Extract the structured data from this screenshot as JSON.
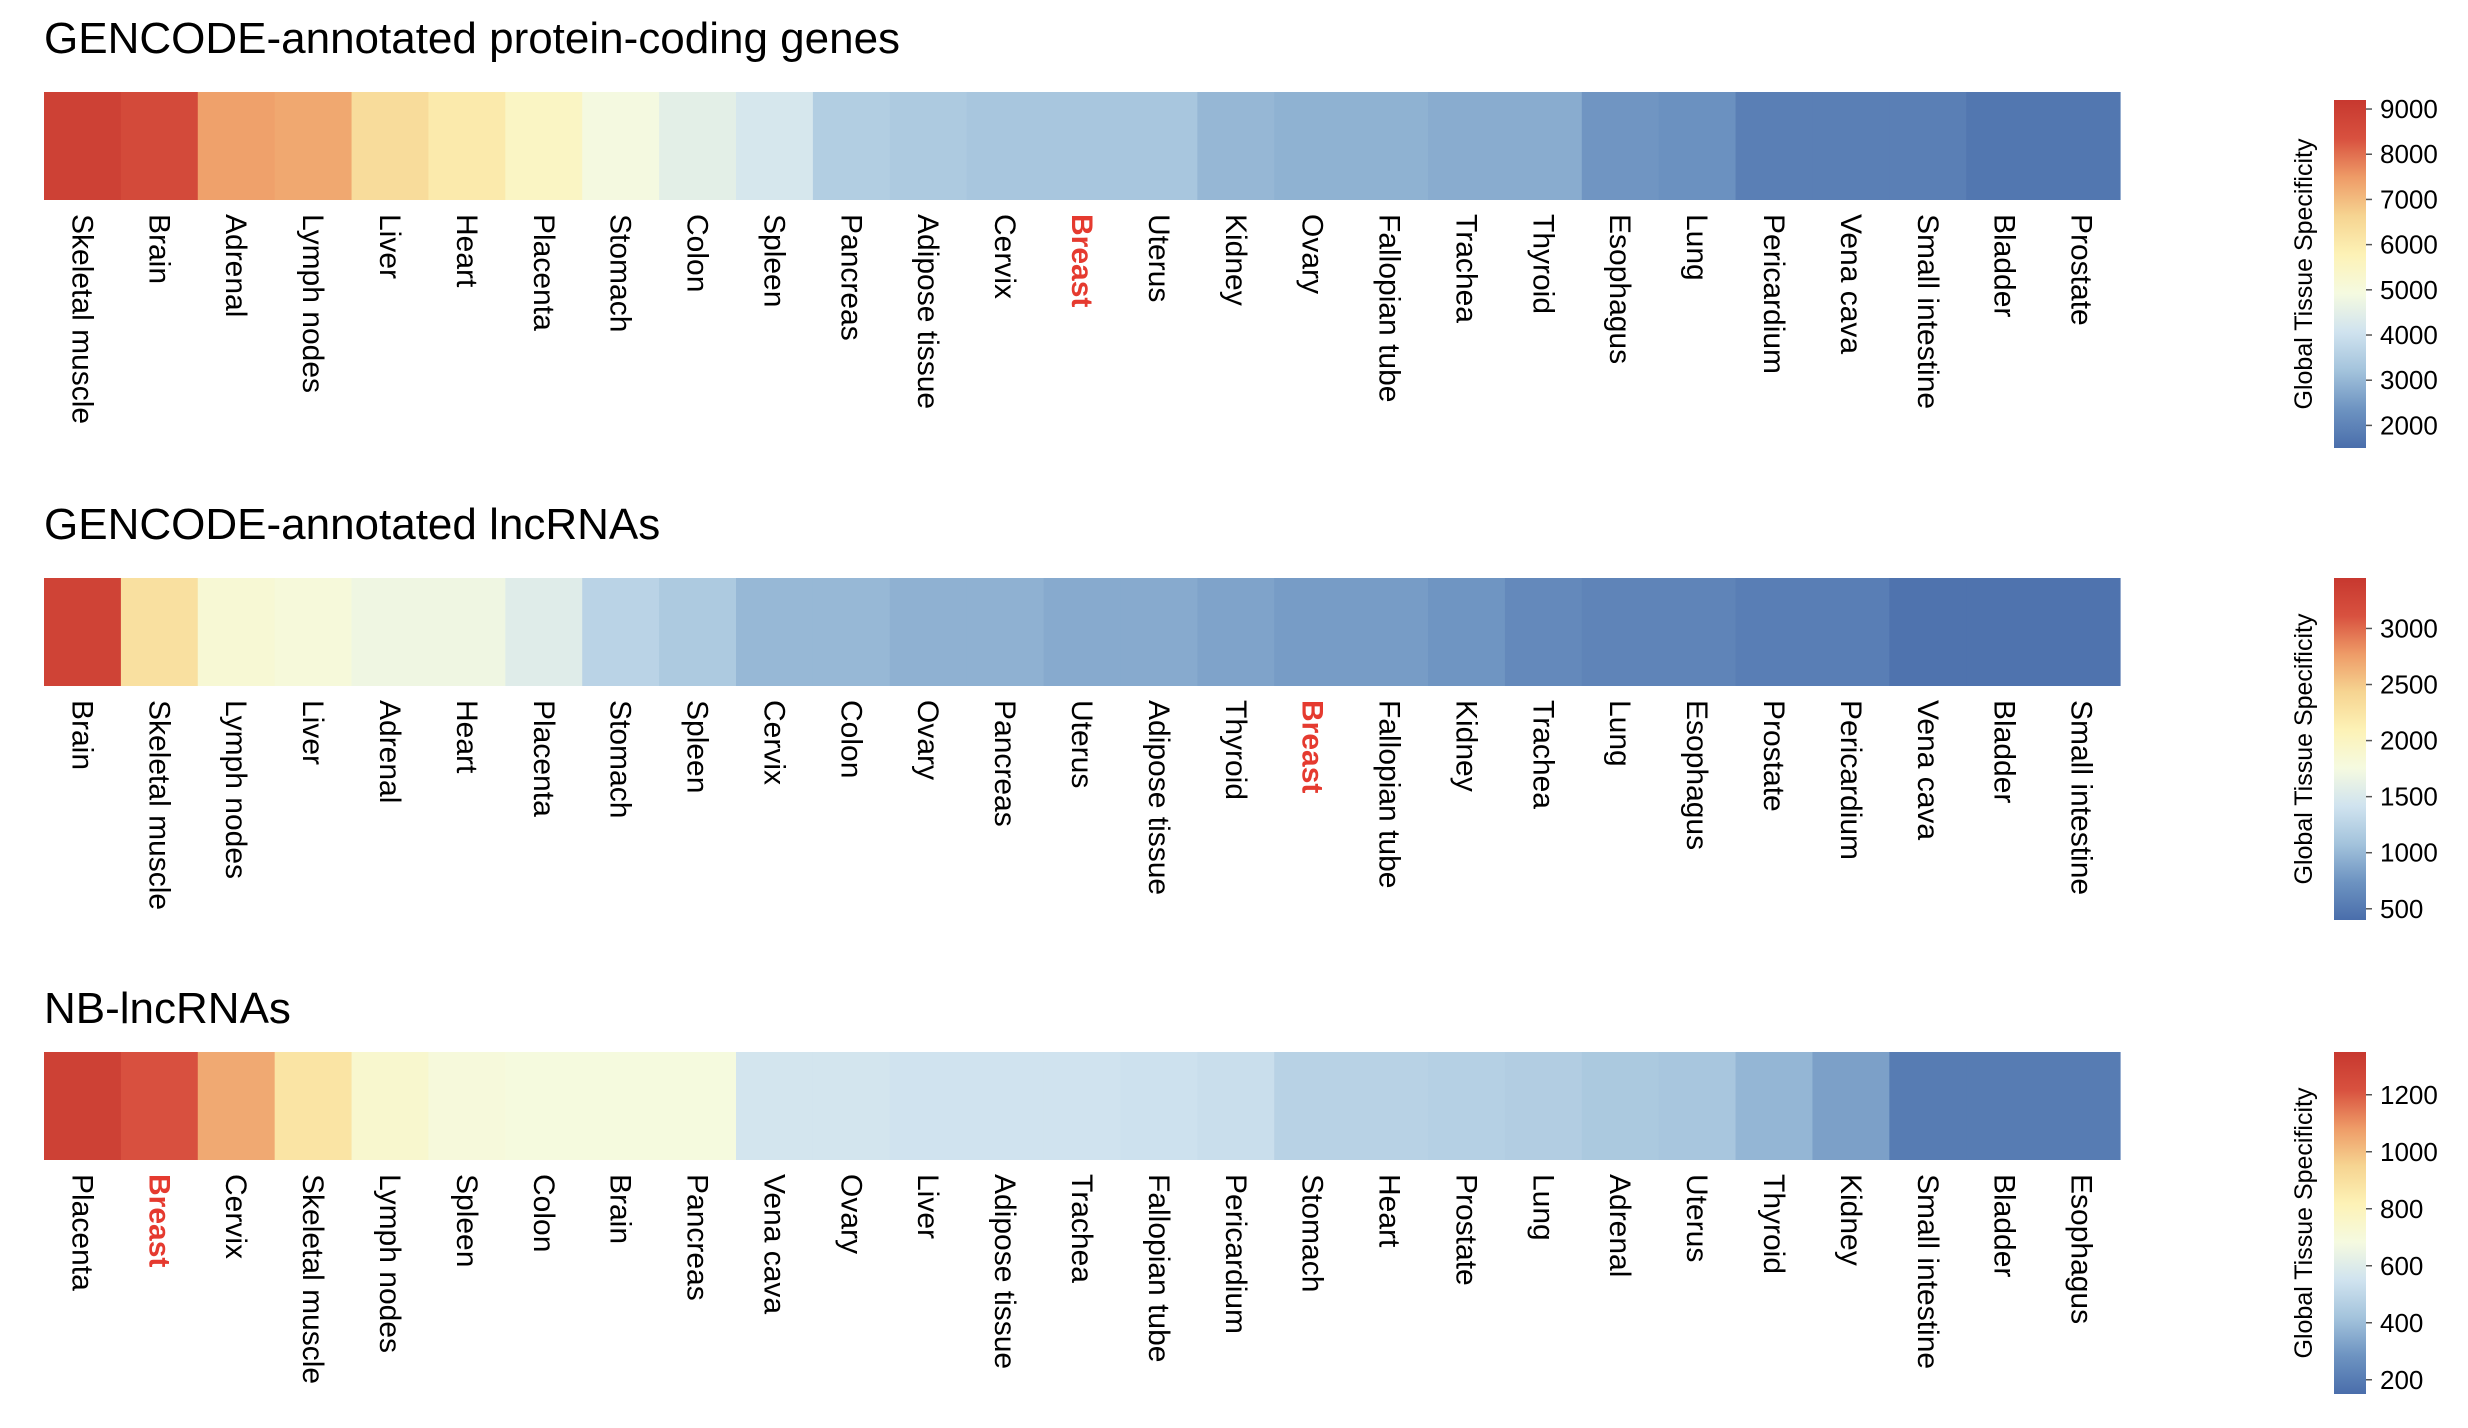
{
  "chart_data": [
    {
      "type": "heatmap",
      "title": "GENCODE-annotated protein-coding genes",
      "categories": [
        "Skeletal muscle",
        "Brain",
        "Adrenal",
        "Lymph nodes",
        "Liver",
        "Heart",
        "Placenta",
        "Stomach",
        "Colon",
        "Spleen",
        "Pancreas",
        "Adipose tissue",
        "Cervix",
        "Breast",
        "Uterus",
        "Kidney",
        "Ovary",
        "Fallopian tube",
        "Trachea",
        "Thyroid",
        "Esophagus",
        "Lung",
        "Pericardium",
        "Vena cava",
        "Small intestine",
        "Bladder",
        "Prostate"
      ],
      "values": [
        8900,
        8600,
        7400,
        7300,
        6400,
        6000,
        5500,
        4900,
        4500,
        4200,
        3500,
        3400,
        3300,
        3300,
        3300,
        3000,
        2900,
        2900,
        2800,
        2800,
        2400,
        2300,
        1900,
        1900,
        1900,
        1700,
        1700
      ],
      "highlight": "Breast",
      "highlight_color": "#e53a2f",
      "colorbar": {
        "label": "Global Tissue Specificity",
        "min": 1500,
        "max": 9200,
        "ticks": [
          2000,
          3000,
          4000,
          5000,
          6000,
          7000,
          8000,
          9000
        ]
      }
    },
    {
      "type": "heatmap",
      "title": "GENCODE-annotated lncRNAs",
      "categories": [
        "Brain",
        "Skeletal muscle",
        "Lymph nodes",
        "Liver",
        "Adrenal",
        "Heart",
        "Placenta",
        "Stomach",
        "Spleen",
        "Cervix",
        "Colon",
        "Ovary",
        "Pancreas",
        "Uterus",
        "Adipose tissue",
        "Thyroid",
        "Breast",
        "Fallopian tube",
        "Kidney",
        "Trachea",
        "Lung",
        "Esophagus",
        "Prostate",
        "Pericardium",
        "Vena cava",
        "Bladder",
        "Small intestine"
      ],
      "values": [
        3300,
        2300,
        1850,
        1800,
        1700,
        1700,
        1550,
        1250,
        1150,
        1000,
        1000,
        950,
        950,
        900,
        900,
        850,
        800,
        800,
        750,
        650,
        600,
        600,
        550,
        550,
        450,
        450,
        450
      ],
      "highlight": "Breast",
      "highlight_color": "#e53a2f",
      "colorbar": {
        "label": "Global Tissue Specificity",
        "min": 400,
        "max": 3450,
        "ticks": [
          500,
          1000,
          1500,
          2000,
          2500,
          3000
        ]
      }
    },
    {
      "type": "heatmap",
      "title": "NB-lncRNAs",
      "categories": [
        "Placenta",
        "Breast",
        "Cervix",
        "Skeletal muscle",
        "Lymph nodes",
        "Spleen",
        "Colon",
        "Brain",
        "Pancreas",
        "Vena cava",
        "Ovary",
        "Liver",
        "Adipose tissue",
        "Trachea",
        "Fallopian tube",
        "Pericardium",
        "Stomach",
        "Heart",
        "Prostate",
        "Lung",
        "Adrenal",
        "Uterus",
        "Thyroid",
        "Kidney",
        "Small intestine",
        "Bladder",
        "Esophagus"
      ],
      "values": [
        1300,
        1220,
        1050,
        880,
        740,
        700,
        690,
        690,
        690,
        560,
        560,
        550,
        550,
        550,
        540,
        530,
        480,
        480,
        470,
        460,
        440,
        430,
        380,
        320,
        200,
        200,
        200
      ],
      "highlight": "Breast",
      "highlight_color": "#e53a2f",
      "colorbar": {
        "label": "Global Tissue Specificity",
        "min": 150,
        "max": 1350,
        "ticks": [
          200,
          400,
          600,
          800,
          1000,
          1200
        ]
      }
    }
  ],
  "colors": {
    "scale": [
      "#4a6eab",
      "#6d93c1",
      "#a3c3dc",
      "#d0e3ef",
      "#f5fae0",
      "#fdf2b6",
      "#f6d491",
      "#ee9b67",
      "#d8513f",
      "#c7382f"
    ],
    "text": "#000000"
  }
}
